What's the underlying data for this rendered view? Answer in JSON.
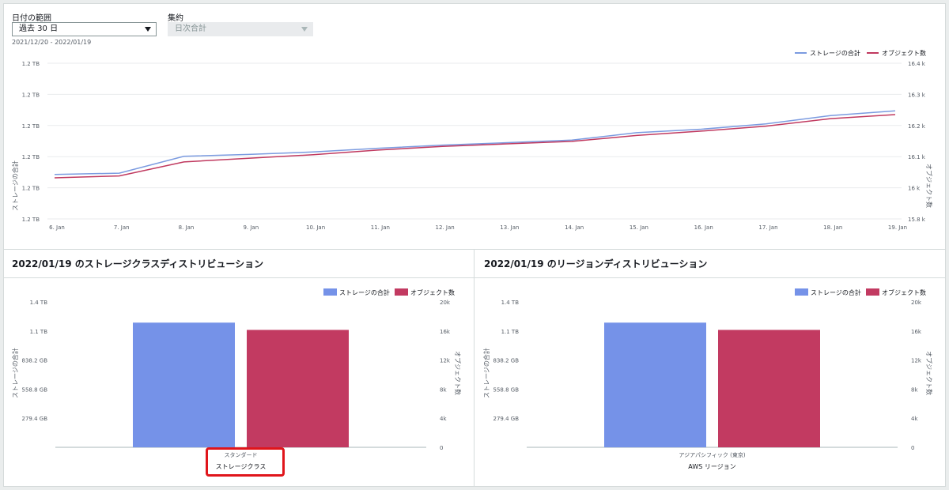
{
  "filters": {
    "date_range_label": "日付の範囲",
    "date_range_value": "過去 30 日",
    "date_range_text": "2021/12/20 - 2022/01/19",
    "aggregation_label": "集約",
    "aggregation_value": "日次合計"
  },
  "legend": {
    "storage": "ストレージの合計",
    "objects": "オブジェクト数"
  },
  "colors": {
    "storage": "#7b9be0",
    "objects": "#c0395f",
    "storage_bar": "#7592e8",
    "objects_bar": "#c23a61"
  },
  "chart_data": [
    {
      "type": "line",
      "title": "",
      "x": [
        "6. Jan",
        "7. Jan",
        "8. Jan",
        "9. Jan",
        "10. Jan",
        "11. Jan",
        "12. Jan",
        "13. Jan",
        "14. Jan",
        "15. Jan",
        "16. Jan",
        "17. Jan",
        "18. Jan",
        "19. Jan"
      ],
      "ylabel": "ストレージの合計",
      "ylabel_right": "オブジェクト数",
      "y_ticks_left": [
        "1.2 TB",
        "1.2 TB",
        "1.2 TB",
        "1.2 TB",
        "1.2 TB",
        "1.2 TB"
      ],
      "y_ticks_right": [
        "16.4 k",
        "16.3 k",
        "16.2 k",
        "16.1 k",
        "16 k",
        "15.8 k"
      ],
      "right_ylim": [
        15.9,
        16.4
      ],
      "series": [
        {
          "name": "ストレージの合計",
          "axis": "left",
          "values": [
            16.043,
            16.047,
            16.101,
            16.107,
            16.115,
            16.127,
            16.137,
            16.145,
            16.153,
            16.177,
            16.188,
            16.205,
            16.232,
            16.247
          ]
        },
        {
          "name": "オブジェクト数",
          "axis": "right",
          "values": [
            16.032,
            16.038,
            16.083,
            16.095,
            16.106,
            16.121,
            16.133,
            16.141,
            16.149,
            16.168,
            16.182,
            16.198,
            16.222,
            16.235
          ]
        }
      ],
      "grid": true,
      "legend_position": "top-right"
    },
    {
      "type": "bar",
      "title": "2022/01/19 のストレージクラスディストリビューション",
      "categories": [
        "スタンダード"
      ],
      "xlabel": "ストレージクラス",
      "ylabel": "ストレージの合計",
      "ylabel_right": "オブジェクト数",
      "y_ticks_left": [
        "1.4 TB",
        "1.1 TB",
        "838.2 GB",
        "558.8 GB",
        "279.4 GB"
      ],
      "y_ticks_right": [
        "20k",
        "16k",
        "12k",
        "8k",
        "4k",
        "0"
      ],
      "ylim_right": [
        0,
        20000
      ],
      "series": [
        {
          "name": "ストレージの合計",
          "values": [
            17150
          ]
        },
        {
          "name": "オブジェクト数",
          "values": [
            16150
          ]
        }
      ],
      "legend_position": "top-right"
    },
    {
      "type": "bar",
      "title": "2022/01/19 のリージョンディストリビューション",
      "categories": [
        "アジアパシフィック (東京)"
      ],
      "xlabel": "AWS リージョン",
      "ylabel": "ストレージの合計",
      "ylabel_right": "オブジェクト数",
      "y_ticks_left": [
        "1.4 TB",
        "1.1 TB",
        "838.2 GB",
        "558.8 GB",
        "279.4 GB"
      ],
      "y_ticks_right": [
        "20k",
        "16k",
        "12k",
        "8k",
        "4k",
        "0"
      ],
      "ylim_right": [
        0,
        20000
      ],
      "series": [
        {
          "name": "ストレージの合計",
          "values": [
            17150
          ]
        },
        {
          "name": "オブジェクト数",
          "values": [
            16150
          ]
        }
      ],
      "legend_position": "top-right"
    }
  ]
}
